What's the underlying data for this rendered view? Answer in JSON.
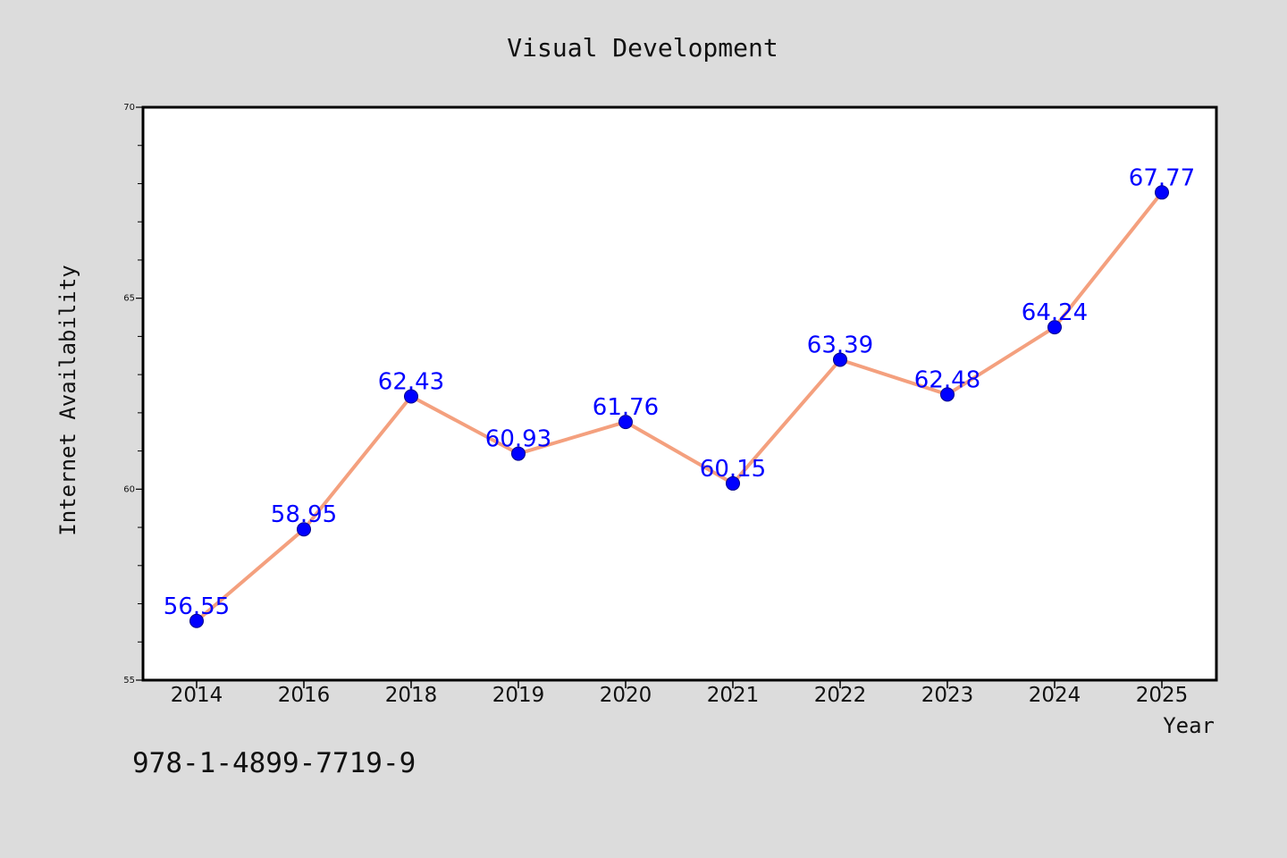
{
  "chart_data": {
    "type": "line",
    "title": "Visual Development",
    "xlabel": "Year",
    "ylabel": "Internet Availability",
    "categories": [
      "2014",
      "2016",
      "2018",
      "2019",
      "2020",
      "2021",
      "2022",
      "2023",
      "2024",
      "2025"
    ],
    "series": [
      {
        "values": [
          56.55,
          58.95,
          62.43,
          60.93,
          61.76,
          60.15,
          63.39,
          62.48,
          64.24,
          67.77
        ],
        "labels": [
          "56.55",
          "58.95",
          "62.43",
          "60.93",
          "61.76",
          "60.15",
          "63.39",
          "62.48",
          "64.24",
          "67.77"
        ],
        "line_color": "#f4a07e",
        "marker_color": "#0000ff"
      }
    ],
    "ylim": [
      55,
      70
    ],
    "yticks": [
      "55",
      "60",
      "65",
      "70"
    ],
    "grid": false,
    "legend": "none"
  },
  "footnote": "978-1-4899-7719-9",
  "colors": {
    "background": "#dcdcdc",
    "plot_background": "#ffffff",
    "axis": "#000000"
  }
}
